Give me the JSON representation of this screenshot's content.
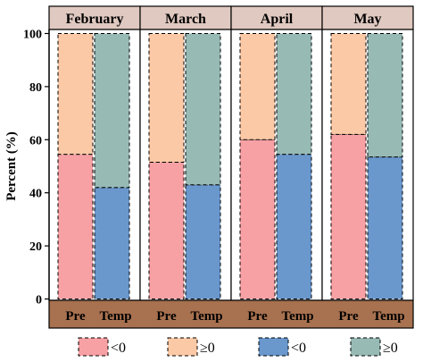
{
  "chart_data": {
    "type": "bar",
    "stacked": true,
    "ylabel": "Percent (%)",
    "ylim": [
      0,
      100
    ],
    "yticks": [
      0,
      20,
      40,
      60,
      80,
      100
    ],
    "categories": [
      "Pre",
      "Temp"
    ],
    "panels": [
      {
        "title": "February",
        "values": {
          "<0": [
            54.5,
            42.0
          ],
          "≥0": [
            45.5,
            58.0
          ]
        }
      },
      {
        "title": "March",
        "values": {
          "<0": [
            51.5,
            43.0
          ],
          "≥0": [
            48.5,
            57.0
          ]
        }
      },
      {
        "title": "April",
        "values": {
          "<0": [
            60.0,
            54.5
          ],
          "≥0": [
            40.0,
            45.5
          ]
        }
      },
      {
        "title": "May",
        "values": {
          "<0": [
            62.0,
            53.5
          ],
          "≥0": [
            38.0,
            46.5
          ]
        }
      }
    ],
    "legend": [
      {
        "label": "<0",
        "color": "#f7a1a5"
      },
      {
        "label": "≥0",
        "color": "#fcc9a6"
      },
      {
        "label": "<0",
        "color": "#6a97cc"
      },
      {
        "label": "≥0",
        "color": "#97bab5"
      }
    ],
    "colors": {
      "Pre_neg": "#f7a1a5",
      "Pre_pos": "#fcc9a6",
      "Temp_neg": "#6a97cc",
      "Temp_pos": "#97bab5",
      "strip": "#e0c9c0",
      "bottom_band": "#a8714f",
      "border": "#000000"
    }
  }
}
